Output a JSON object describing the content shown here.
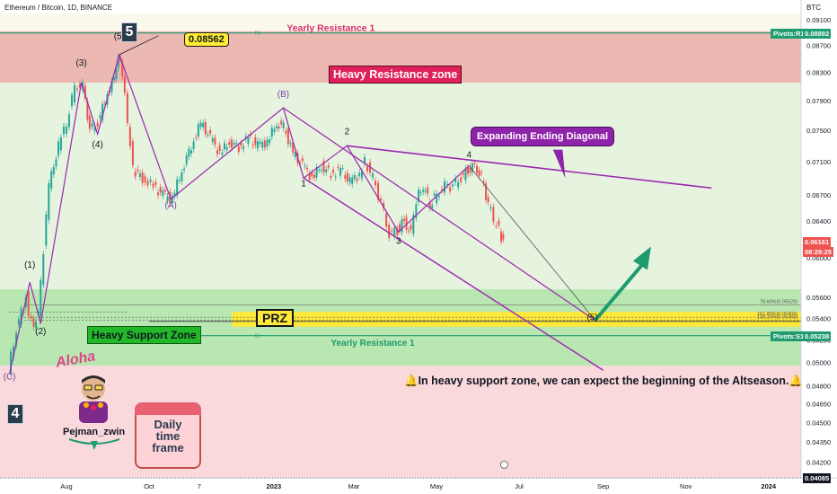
{
  "header": {
    "symbol_title": "Ethereum / Bitcoin, 1D, BINANCE",
    "currency": "BTC"
  },
  "chart_data": {
    "type": "candlestick",
    "title": "Ethereum / Bitcoin, 1D, BINANCE",
    "y_axis": {
      "scale": "log",
      "unit": "BTC",
      "ylim": [
        0.04085,
        0.092
      ],
      "tick_labels": [
        "0.09100",
        "0.08700",
        "0.08300",
        "0.07900",
        "0.07500",
        "0.07100",
        "0.06700",
        "0.06400",
        "0.06000",
        "0.05600",
        "0.05400",
        "0.05200",
        "0.05000",
        "0.04800",
        "0.04650",
        "0.04500",
        "0.04350",
        "0.04200"
      ],
      "tick_values": [
        0.091,
        0.087,
        0.083,
        0.079,
        0.075,
        0.071,
        0.067,
        0.064,
        0.06,
        0.056,
        0.054,
        0.052,
        0.05,
        0.048,
        0.0465,
        0.045,
        0.0435,
        0.042
      ]
    },
    "x_axis": {
      "tick_labels": [
        "Aug",
        "Oct",
        "7",
        "2023",
        "Mar",
        "May",
        "Jul",
        "Sep",
        "Nov",
        "2024"
      ],
      "tick_dates": [
        "2022-08-01",
        "2022-10-01",
        "2022-11-07",
        "2023-01-01",
        "2023-03-01",
        "2023-05-01",
        "2023-07-01",
        "2023-09-01",
        "2023-11-01",
        "2024-01-01"
      ]
    },
    "grid": false,
    "price_path": [
      [
        "2022-06-20",
        0.049
      ],
      [
        "2022-06-26",
        0.053
      ],
      [
        "2022-07-03",
        0.056
      ],
      [
        "2022-07-07",
        0.0535
      ],
      [
        "2022-07-12",
        0.054
      ],
      [
        "2022-07-20",
        0.068
      ],
      [
        "2022-07-27",
        0.073
      ],
      [
        "2022-08-02",
        0.076
      ],
      [
        "2022-08-08",
        0.081
      ],
      [
        "2022-08-14",
        0.081
      ],
      [
        "2022-08-19",
        0.075
      ],
      [
        "2022-08-25",
        0.076
      ],
      [
        "2022-09-01",
        0.08
      ],
      [
        "2022-09-06",
        0.082
      ],
      [
        "2022-09-09",
        0.0856
      ],
      [
        "2022-09-12",
        0.083
      ],
      [
        "2022-09-16",
        0.076
      ],
      [
        "2022-09-20",
        0.07
      ],
      [
        "2022-09-27",
        0.069
      ],
      [
        "2022-10-05",
        0.068
      ],
      [
        "2022-10-12",
        0.067
      ],
      [
        "2022-10-19",
        0.0665
      ],
      [
        "2022-10-26",
        0.07
      ],
      [
        "2022-11-02",
        0.073
      ],
      [
        "2022-11-09",
        0.076
      ],
      [
        "2022-11-16",
        0.074
      ],
      [
        "2022-11-23",
        0.072
      ],
      [
        "2022-11-30",
        0.0735
      ],
      [
        "2022-12-07",
        0.0728
      ],
      [
        "2022-12-14",
        0.074
      ],
      [
        "2022-12-21",
        0.073
      ],
      [
        "2022-12-28",
        0.0735
      ],
      [
        "2023-01-04",
        0.076
      ],
      [
        "2023-01-09",
        0.0755
      ],
      [
        "2023-01-16",
        0.072
      ],
      [
        "2023-01-23",
        0.0705
      ],
      [
        "2023-01-30",
        0.069
      ],
      [
        "2023-02-06",
        0.0705
      ],
      [
        "2023-02-13",
        0.0695
      ],
      [
        "2023-02-20",
        0.07
      ],
      [
        "2023-02-27",
        0.0685
      ],
      [
        "2023-03-06",
        0.0695
      ],
      [
        "2023-03-10",
        0.071
      ],
      [
        "2023-03-16",
        0.069
      ],
      [
        "2023-03-22",
        0.066
      ],
      [
        "2023-03-28",
        0.0625
      ],
      [
        "2023-04-03",
        0.063
      ],
      [
        "2023-04-08",
        0.064
      ],
      [
        "2023-04-13",
        0.0625
      ],
      [
        "2023-04-17",
        0.0665
      ],
      [
        "2023-04-22",
        0.068
      ],
      [
        "2023-04-27",
        0.066
      ],
      [
        "2023-05-02",
        0.067
      ],
      [
        "2023-05-08",
        0.068
      ],
      [
        "2023-05-14",
        0.068
      ],
      [
        "2023-05-20",
        0.069
      ],
      [
        "2023-05-25",
        0.07
      ],
      [
        "2023-05-30",
        0.0705
      ],
      [
        "2023-06-04",
        0.069
      ],
      [
        "2023-06-09",
        0.066
      ],
      [
        "2023-06-13",
        0.064
      ],
      [
        "2023-06-17",
        0.063
      ],
      [
        "2023-06-20",
        0.0616
      ]
    ],
    "wave_labels": [
      {
        "label": "(C)",
        "date": "2022-06-20",
        "price": 0.0485
      },
      {
        "label": "(1)",
        "date": "2022-07-05",
        "price": 0.059
      },
      {
        "label": "(2)",
        "date": "2022-07-13",
        "price": 0.0525
      },
      {
        "label": "(3)",
        "date": "2022-08-12",
        "price": 0.084
      },
      {
        "label": "(4)",
        "date": "2022-08-24",
        "price": 0.0728
      },
      {
        "label": "(5)",
        "date": "2022-09-09",
        "price": 0.088
      },
      {
        "label": "(A)",
        "date": "2022-10-17",
        "price": 0.0655
      },
      {
        "label": "(B)",
        "date": "2023-01-08",
        "price": 0.0795
      },
      {
        "label": "1",
        "date": "2023-01-23",
        "price": 0.068
      },
      {
        "label": "2",
        "date": "2023-02-24",
        "price": 0.0745
      },
      {
        "label": "3",
        "date": "2023-04-03",
        "price": 0.0615
      },
      {
        "label": "4",
        "date": "2023-05-25",
        "price": 0.0715
      },
      {
        "label": "(5)",
        "date": "2023-08-24",
        "price": 0.0538
      }
    ],
    "levels": [
      {
        "name": "Pivots:R1",
        "value": 0.08892
      },
      {
        "name": "Pivots:S1",
        "value": 0.05238
      },
      {
        "name": "78.60%",
        "value": 0.05529
      },
      {
        "name": "161.80%",
        "value": 0.05409
      },
      {
        "name": "138.20%",
        "value": 0.05383
      }
    ],
    "fib_labels": [
      "78.60%(0.05529)",
      "161.80%(0.05409)",
      "138.20%(0.05383)"
    ],
    "pivot_labels": {
      "r1": "Pivots:R1",
      "r1_value": "0.08892",
      "s1": "Pivots:S1",
      "s1_value": "0.05238",
      "r1_marker": "R1",
      "s1_marker": "S1"
    },
    "zones": {
      "resistance": [
        0.0815,
        0.0892
      ],
      "support": [
        0.0497,
        0.0568
      ],
      "prz": [
        0.0532,
        0.0546
      ]
    },
    "current_price": "0.06161",
    "countdown": "08:29:25",
    "bottom_price": "0.04085",
    "target_date": "2023-08-26",
    "target_price": 0.0538
  },
  "annotations": {
    "wave_badge_5": "5",
    "wave_badge_4": "4",
    "high_callout": "0.08562",
    "yearly_resistance_top": "Yearly Resistance 1",
    "yearly_resistance_bottom": "Yearly Resistance 1",
    "heavy_resistance": "Heavy Resistance zone",
    "heavy_support": "Heavy Support Zone",
    "prz": "PRZ",
    "expanding_diagonal": "Expanding Ending Diagonal",
    "note": "🔔In heavy support zone, we can expect the beginning of the Altseason.🔔",
    "author": "Pejman_zwin",
    "aloha": "Aloha",
    "daily": [
      "Daily",
      "time",
      "frame"
    ]
  },
  "colors": {
    "resistance_zone": "#ecb8b2",
    "support_zone": "#b9e7b2",
    "prz": "#ffe93a",
    "wave_lines": "#9c27b0",
    "pivot_line": "#1e9b6f",
    "bull_candle": "#26a69a",
    "bear_candle": "#ef5350",
    "arrow": "#1e9b6f",
    "current_price_tag": "#ef5350"
  }
}
